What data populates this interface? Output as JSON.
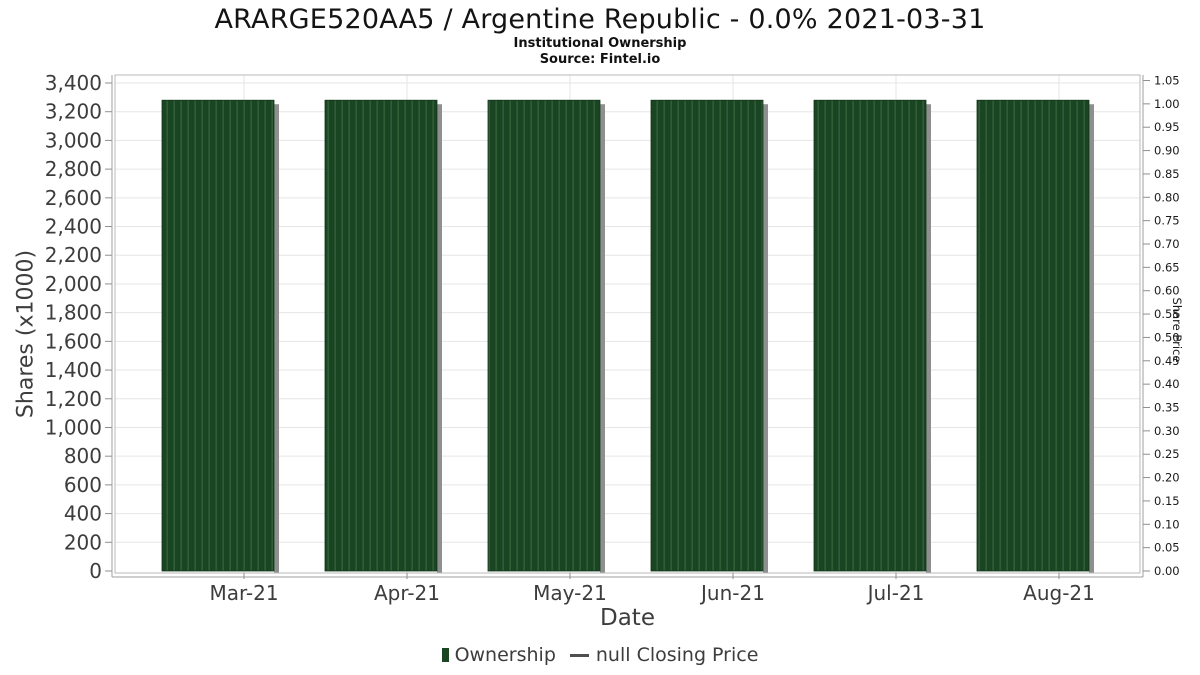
{
  "chart_data": {
    "type": "bar",
    "title": "ARARGE520AA5 / Argentine Republic - 0.0% 2021-03-31",
    "subtitle": "Institutional Ownership",
    "source": "Source: Fintel.io",
    "xlabel": "Date",
    "ylabel_left": "Shares (x1000)",
    "ylabel_right": "Share Price",
    "categories": [
      "Mar-21",
      "Apr-21",
      "May-21",
      "Jun-21",
      "Jul-21",
      "Aug-21"
    ],
    "series": [
      {
        "name": "Ownership",
        "type": "bar",
        "color": "#1a4522",
        "stripe_color": "#305c36",
        "shadow_color": "#8f8f8f",
        "values": [
          3280,
          3280,
          3280,
          3280,
          3280,
          3280
        ]
      },
      {
        "name": "null Closing Price",
        "type": "line",
        "color": "#4f4f4f",
        "values": [
          null,
          null,
          null,
          null,
          null,
          null
        ]
      }
    ],
    "axes": {
      "left": {
        "min": 0,
        "max": 3400,
        "step": 200
      },
      "right": {
        "min": 0,
        "max": 1.05,
        "step": 0.05,
        "decimals": 2
      }
    },
    "grid": true,
    "legend_position": "bottom",
    "colors": {
      "grid": "#e6e6e6",
      "plot_border": "#b8b8b8",
      "axis_line": "#9f9f9f",
      "tick": "#8f8f8f",
      "tick_label": "#3d3d3d",
      "right_tick_label": "#1a1a1a"
    }
  }
}
